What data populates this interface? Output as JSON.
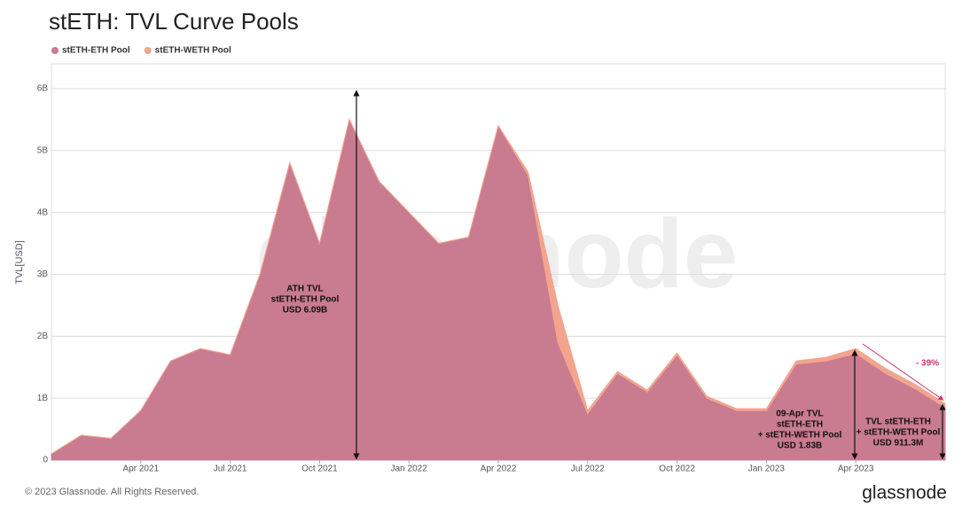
{
  "chart_data": {
    "type": "area",
    "stacked": true,
    "title": "stETH: TVL Curve Pools",
    "y_label": "TVL[USD]",
    "x": [
      "2021-01",
      "2021-02",
      "2021-03",
      "2021-04",
      "2021-05",
      "2021-06",
      "2021-07",
      "2021-08",
      "2021-09",
      "2021-10",
      "2021-11",
      "2021-12",
      "2022-01",
      "2022-02",
      "2022-03",
      "2022-04",
      "2022-05",
      "2022-06",
      "2022-07",
      "2022-08",
      "2022-09",
      "2022-10",
      "2022-11",
      "2022-12",
      "2023-01",
      "2023-02",
      "2023-03",
      "2023-04",
      "2023-05",
      "2023-06",
      "2023-07"
    ],
    "series": [
      {
        "name": "stETH-ETH Pool",
        "color": "#c97b8f",
        "values": [
          0.1,
          0.4,
          0.35,
          0.8,
          1.6,
          1.8,
          1.7,
          3.0,
          4.8,
          3.5,
          5.5,
          4.5,
          4.0,
          3.5,
          3.6,
          5.4,
          4.6,
          1.9,
          0.75,
          1.4,
          1.1,
          1.7,
          1.0,
          0.8,
          0.8,
          1.55,
          1.6,
          1.72,
          1.4,
          1.15,
          0.85
        ]
      },
      {
        "name": "stETH-WETH Pool",
        "color": "#f3a48e",
        "values": [
          0,
          0,
          0,
          0,
          0,
          0,
          0,
          0,
          0,
          0,
          0,
          0,
          0,
          0,
          0,
          0,
          0.05,
          0.6,
          0.05,
          0.03,
          0.03,
          0.03,
          0.03,
          0.03,
          0.03,
          0.05,
          0.06,
          0.08,
          0.08,
          0.07,
          0.06
        ]
      }
    ],
    "xlim": [
      "2021-01",
      "2023-07"
    ],
    "xticks": [
      {
        "value": "2021-04",
        "label": "Apr 2021"
      },
      {
        "value": "2021-07",
        "label": "Jul 2021"
      },
      {
        "value": "2021-10",
        "label": "Oct 2021"
      },
      {
        "value": "2022-01",
        "label": "Jan 2022"
      },
      {
        "value": "2022-04",
        "label": "Apr 2022"
      },
      {
        "value": "2022-07",
        "label": "Jul 2022"
      },
      {
        "value": "2022-10",
        "label": "Oct 2022"
      },
      {
        "value": "2023-01",
        "label": "Jan 2023"
      },
      {
        "value": "2023-04",
        "label": "Apr 2023"
      }
    ],
    "ylim": [
      0,
      6.4
    ],
    "yticks": [
      0,
      {
        "value": 1,
        "label": "1B"
      },
      {
        "value": 2,
        "label": "2B"
      },
      {
        "value": 3,
        "label": "3B"
      },
      {
        "value": 4,
        "label": "4B"
      },
      {
        "value": 5,
        "label": "5B"
      },
      {
        "value": 6,
        "label": "6B"
      }
    ],
    "grid": true,
    "legend": "top-left",
    "annotations": [
      {
        "lines": [
          "ATH TVL",
          "stETH-ETH Pool",
          "USD 6.09B"
        ]
      },
      {
        "lines": [
          "09-Apr TVL",
          "stETH-ETH",
          "+ stETH-WETH Pool",
          "USD 1.83B"
        ]
      },
      {
        "lines": [
          "TVL stETH-ETH",
          "+ stETH-WETH Pool",
          "USD 911.3M"
        ]
      },
      {
        "lines": [
          "- 39%"
        ]
      }
    ],
    "watermark": "glassnode",
    "copyright": "© 2023 Glassnode. All Rights Reserved.",
    "logo": "glassnode"
  }
}
